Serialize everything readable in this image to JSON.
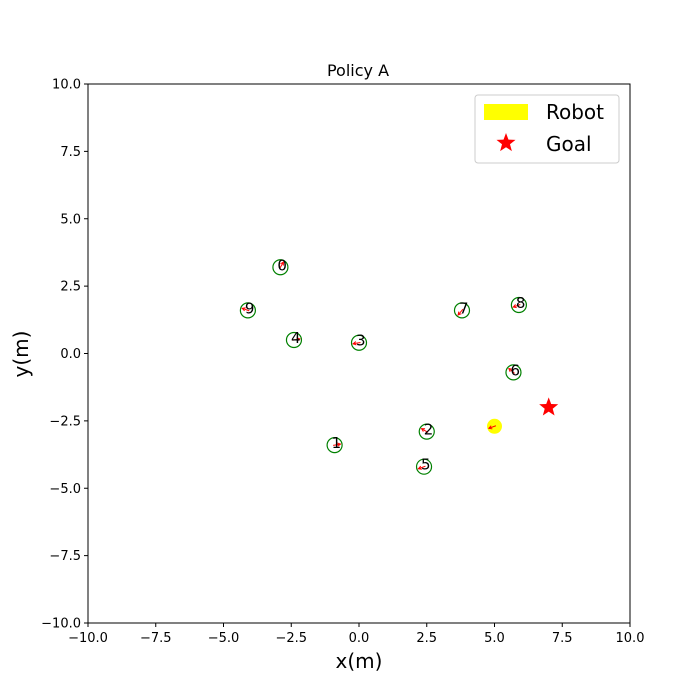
{
  "chart_data": {
    "type": "scatter",
    "title": "Policy A",
    "xlabel": "x(m)",
    "ylabel": "y(m)",
    "xlim": [
      -10,
      10
    ],
    "ylim": [
      -10,
      10
    ],
    "xticks": [
      -10,
      -7.5,
      -5,
      -2.5,
      0,
      2.5,
      5,
      7.5,
      10
    ],
    "yticks": [
      -10,
      -7.5,
      -5,
      -2.5,
      0,
      2.5,
      5,
      7.5,
      10
    ],
    "xtick_labels": [
      "−10.0",
      "−7.5",
      "−5.0",
      "−2.5",
      "0.0",
      "2.5",
      "5.0",
      "7.5",
      "10.0"
    ],
    "ytick_labels": [
      "−10.0",
      "−7.5",
      "−5.0",
      "−2.5",
      "0.0",
      "2.5",
      "5.0",
      "7.5",
      "10.0"
    ],
    "grid": false,
    "legend_position": "top-right",
    "legend": [
      {
        "label": "Robot",
        "marker": "yellow-patch"
      },
      {
        "label": "Goal",
        "marker": "red-star"
      }
    ],
    "robot": {
      "x": 5.0,
      "y": -2.7,
      "heading_deg": 200,
      "color": "#ffff00"
    },
    "goal": {
      "x": 7.0,
      "y": -2.0,
      "color": "#ff0000"
    },
    "humans": [
      {
        "id": "0",
        "x": -2.9,
        "y": 3.2,
        "heading_deg": 60
      },
      {
        "id": "1",
        "x": -0.9,
        "y": -3.4,
        "heading_deg": 10
      },
      {
        "id": "2",
        "x": 2.5,
        "y": -2.9,
        "heading_deg": 150
      },
      {
        "id": "3",
        "x": 0.0,
        "y": 0.4,
        "heading_deg": 190
      },
      {
        "id": "4",
        "x": -2.4,
        "y": 0.5,
        "heading_deg": 10
      },
      {
        "id": "5",
        "x": 2.4,
        "y": -4.2,
        "heading_deg": 200
      },
      {
        "id": "6",
        "x": 5.7,
        "y": -0.7,
        "heading_deg": 140
      },
      {
        "id": "7",
        "x": 3.8,
        "y": 1.6,
        "heading_deg": 230
      },
      {
        "id": "8",
        "x": 5.9,
        "y": 1.8,
        "heading_deg": 200
      },
      {
        "id": "9",
        "x": -4.1,
        "y": 1.6,
        "heading_deg": 160
      }
    ],
    "colors": {
      "human_circle": "#008000",
      "heading": "#ff0000",
      "axis": "#000000"
    }
  }
}
